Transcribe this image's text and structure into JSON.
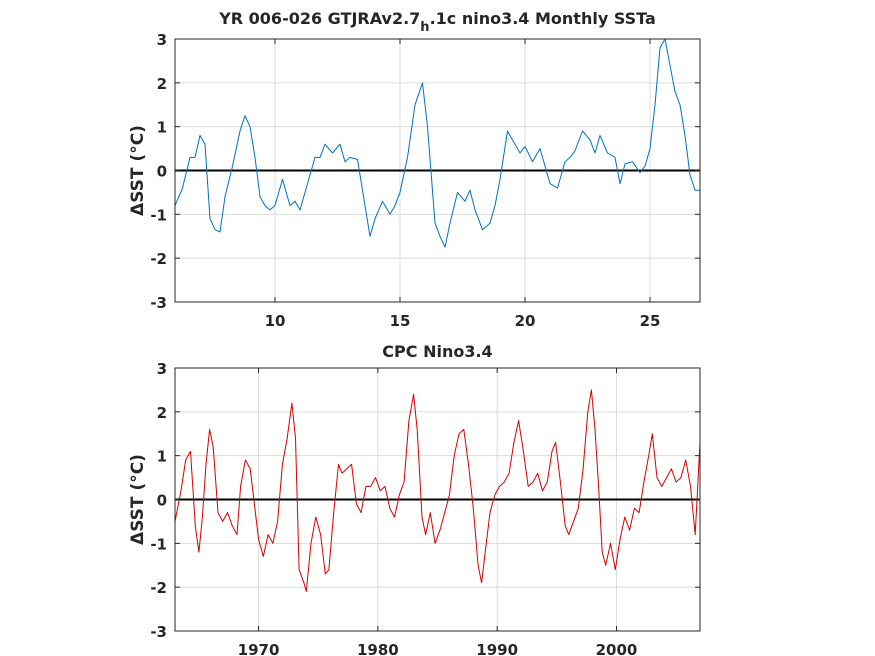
{
  "chart_data": [
    {
      "type": "line",
      "title_parts": [
        "YR 006-026 GTJRAv2.7",
        "h",
        ".1c nino3.4 Monthly SSTa"
      ],
      "xlabel": "",
      "ylabel": "ΔSST (°C)",
      "xlim": [
        6,
        27
      ],
      "ylim": [
        -3,
        3
      ],
      "xticks": [
        10,
        15,
        20,
        25
      ],
      "yticks": [
        -3,
        -2,
        -1,
        0,
        1,
        2,
        3
      ],
      "zero_line": true,
      "grid": true,
      "color": "#0072bd",
      "series": [
        {
          "x": [
            6.0,
            6.3,
            6.6,
            6.8,
            7.0,
            7.2,
            7.4,
            7.6,
            7.8,
            8.0,
            8.3,
            8.6,
            8.8,
            9.0,
            9.2,
            9.4,
            9.6,
            9.8,
            10.0,
            10.3,
            10.6,
            10.8,
            11.0,
            11.3,
            11.6,
            11.8,
            12.0,
            12.3,
            12.6,
            12.8,
            13.0,
            13.3,
            13.6,
            13.8,
            14.0,
            14.3,
            14.6,
            14.8,
            15.0,
            15.3,
            15.6,
            15.9,
            16.1,
            16.4,
            16.6,
            16.8,
            17.0,
            17.3,
            17.6,
            17.8,
            18.0,
            18.3,
            18.6,
            18.8,
            19.0,
            19.3,
            19.6,
            19.8,
            20.0,
            20.3,
            20.6,
            20.8,
            21.0,
            21.3,
            21.6,
            21.8,
            22.0,
            22.3,
            22.6,
            22.8,
            23.0,
            23.3,
            23.6,
            23.8,
            24.0,
            24.3,
            24.6,
            24.8,
            25.0,
            25.2,
            25.4,
            25.6,
            25.8,
            26.0,
            26.2,
            26.4,
            26.6,
            26.8,
            27.0
          ],
          "y": [
            -0.8,
            -0.4,
            0.3,
            0.3,
            0.8,
            0.6,
            -1.1,
            -1.35,
            -1.4,
            -0.6,
            0.1,
            0.9,
            1.25,
            1.0,
            0.3,
            -0.6,
            -0.8,
            -0.9,
            -0.8,
            -0.2,
            -0.8,
            -0.7,
            -0.9,
            -0.3,
            0.3,
            0.3,
            0.6,
            0.4,
            0.6,
            0.2,
            0.3,
            0.25,
            -0.8,
            -1.5,
            -1.1,
            -0.7,
            -1.0,
            -0.8,
            -0.5,
            0.3,
            1.5,
            2.0,
            1.0,
            -1.2,
            -1.5,
            -1.75,
            -1.2,
            -0.5,
            -0.7,
            -0.45,
            -0.9,
            -1.35,
            -1.2,
            -0.8,
            -0.2,
            0.9,
            0.6,
            0.4,
            0.55,
            0.2,
            0.5,
            0.1,
            -0.3,
            -0.4,
            0.2,
            0.3,
            0.45,
            0.9,
            0.7,
            0.4,
            0.8,
            0.4,
            0.3,
            -0.3,
            0.15,
            0.2,
            -0.05,
            0.1,
            0.5,
            1.5,
            2.8,
            3.0,
            2.4,
            1.8,
            1.5,
            0.8,
            -0.1,
            -0.45,
            -0.45
          ]
        }
      ]
    },
    {
      "type": "line",
      "title_parts": [
        "CPC Nino3.4"
      ],
      "xlabel": "",
      "ylabel": "ΔSST (°C)",
      "xlim": [
        1963,
        2007
      ],
      "ylim": [
        -3,
        3
      ],
      "xticks": [
        1970,
        1980,
        1990,
        2000
      ],
      "yticks": [
        -3,
        -2,
        -1,
        0,
        1,
        2,
        3
      ],
      "zero_line": true,
      "grid": true,
      "color": "#d40000",
      "series": [
        {
          "x": [
            1963.0,
            1963.5,
            1963.9,
            1964.3,
            1964.7,
            1965.0,
            1965.3,
            1965.6,
            1965.9,
            1966.2,
            1966.6,
            1967.0,
            1967.4,
            1967.8,
            1968.2,
            1968.5,
            1968.9,
            1969.3,
            1969.7,
            1970.0,
            1970.4,
            1970.8,
            1971.2,
            1971.6,
            1972.0,
            1972.4,
            1972.8,
            1973.1,
            1973.4,
            1973.8,
            1974.0,
            1974.4,
            1974.8,
            1975.2,
            1975.6,
            1975.9,
            1976.3,
            1976.7,
            1977.0,
            1977.4,
            1977.8,
            1978.2,
            1978.6,
            1979.0,
            1979.4,
            1979.8,
            1980.2,
            1980.6,
            1981.0,
            1981.4,
            1981.8,
            1982.2,
            1982.6,
            1983.0,
            1983.3,
            1983.7,
            1984.0,
            1984.4,
            1984.8,
            1985.2,
            1985.6,
            1986.0,
            1986.4,
            1986.8,
            1987.2,
            1987.6,
            1988.0,
            1988.4,
            1988.7,
            1989.0,
            1989.4,
            1989.8,
            1990.2,
            1990.6,
            1991.0,
            1991.4,
            1991.8,
            1992.2,
            1992.6,
            1993.0,
            1993.4,
            1993.8,
            1994.2,
            1994.6,
            1994.9,
            1995.3,
            1995.7,
            1996.0,
            1996.4,
            1996.8,
            1997.2,
            1997.6,
            1997.9,
            1998.2,
            1998.5,
            1998.8,
            1999.1,
            1999.5,
            1999.9,
            2000.3,
            2000.7,
            2001.1,
            2001.5,
            2001.9,
            2002.3,
            2002.7,
            2003.0,
            2003.4,
            2003.8,
            2004.2,
            2004.6,
            2005.0,
            2005.4,
            2005.8,
            2006.2,
            2006.6,
            2007.0
          ],
          "y": [
            -0.5,
            0.2,
            0.9,
            1.1,
            -0.6,
            -1.2,
            -0.4,
            0.8,
            1.6,
            1.2,
            -0.3,
            -0.5,
            -0.3,
            -0.6,
            -0.8,
            0.3,
            0.9,
            0.7,
            -0.2,
            -0.9,
            -1.3,
            -0.8,
            -1.0,
            -0.5,
            0.8,
            1.4,
            2.2,
            1.4,
            -1.6,
            -1.9,
            -2.1,
            -1.0,
            -0.4,
            -0.8,
            -1.7,
            -1.6,
            -0.3,
            0.8,
            0.6,
            0.7,
            0.8,
            -0.1,
            -0.3,
            0.3,
            0.3,
            0.5,
            0.2,
            0.3,
            -0.2,
            -0.4,
            0.1,
            0.4,
            1.8,
            2.4,
            1.6,
            -0.4,
            -0.8,
            -0.3,
            -1.0,
            -0.7,
            -0.3,
            0.1,
            1.0,
            1.5,
            1.6,
            0.8,
            -0.2,
            -1.5,
            -1.9,
            -1.2,
            -0.3,
            0.1,
            0.3,
            0.4,
            0.6,
            1.3,
            1.8,
            1.1,
            0.3,
            0.4,
            0.6,
            0.2,
            0.4,
            1.1,
            1.3,
            0.4,
            -0.6,
            -0.8,
            -0.5,
            -0.2,
            0.7,
            2.0,
            2.5,
            1.6,
            0.3,
            -1.2,
            -1.5,
            -1.0,
            -1.6,
            -0.9,
            -0.4,
            -0.7,
            -0.2,
            -0.3,
            0.4,
            1.0,
            1.5,
            0.5,
            0.3,
            0.5,
            0.7,
            0.4,
            0.5,
            0.9,
            0.3,
            -0.8,
            1.3
          ]
        }
      ]
    }
  ]
}
